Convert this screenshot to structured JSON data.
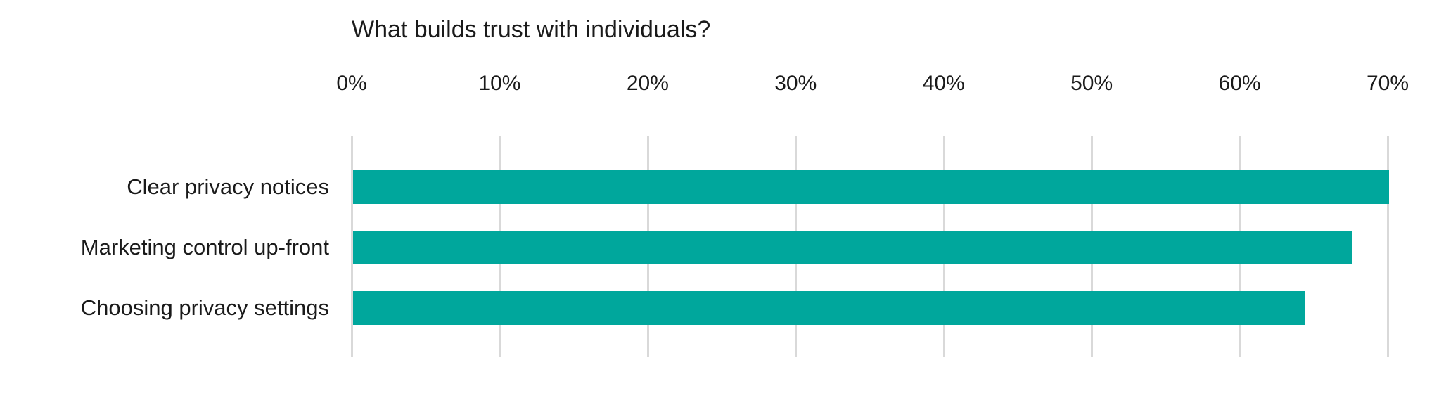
{
  "chart_data": {
    "type": "bar",
    "orientation": "horizontal",
    "title": "What builds trust with individuals?",
    "categories": [
      "Clear privacy notices",
      "Marketing control up-front",
      "Choosing privacy settings"
    ],
    "values": [
      70,
      67.5,
      64.3
    ],
    "unit": "%",
    "xlabel": "",
    "ylabel": "",
    "xlim": [
      0,
      70
    ],
    "x_tick_labels": [
      "0%",
      "10%",
      "20%",
      "30%",
      "40%",
      "50%",
      "60%",
      "70%"
    ],
    "x_tick_step": 10,
    "grid": "vertical-only",
    "legend_position": "none",
    "data_labels": "none",
    "bar_color": "#00A79C",
    "gridline_color": "#D9D9D9",
    "text_color": "#1A1A1A",
    "background_color": "#FFFFFF"
  }
}
